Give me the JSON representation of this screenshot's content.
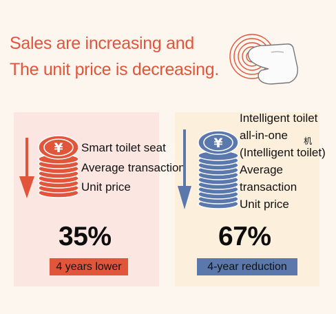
{
  "headline": {
    "line1": "Sales are increasing and",
    "line2": "The unit price is decreasing."
  },
  "colors": {
    "accent_red": "#e1553b",
    "accent_blue": "#5a78ab",
    "panel_left_bg": "#fbe6e2",
    "panel_right_bg": "#fcefdc",
    "page_bg": "#fdf6ef"
  },
  "icons": {
    "touch": "finger-touch-icon",
    "coins_left": "yen-coin-stack-icon",
    "coins_right": "yen-coin-stack-icon",
    "arrow_left": "down-arrow-icon",
    "arrow_right": "down-arrow-icon"
  },
  "left_panel": {
    "label_lines": [
      "Smart toilet seat",
      "Average transaction",
      "Unit price"
    ],
    "percent": "35%",
    "badge": "4 years lower"
  },
  "right_panel": {
    "label_lines": [
      "Intelligent toilet",
      "all-in-one",
      "(Intelligent toilet)",
      "Average",
      "transaction",
      "Unit price"
    ],
    "char_note": "机",
    "percent": "67%",
    "badge": "4-year reduction"
  }
}
